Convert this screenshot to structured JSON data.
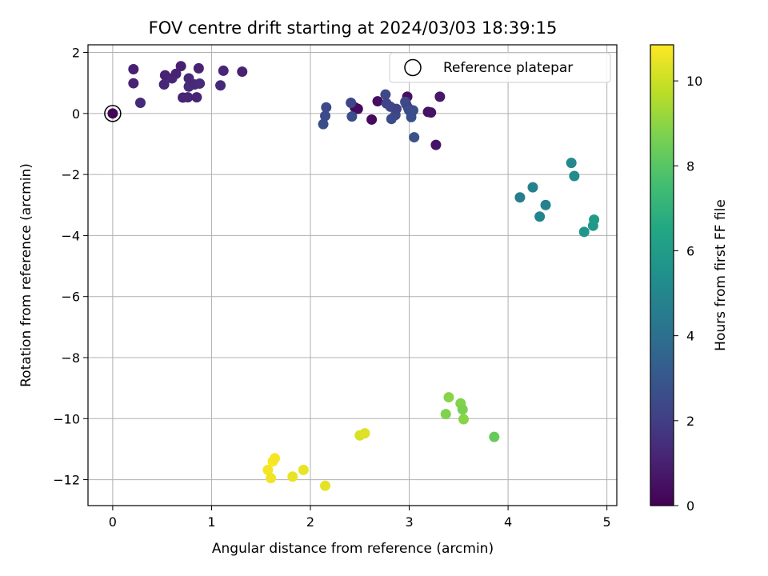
{
  "chart_data": {
    "type": "scatter",
    "title": "FOV centre drift starting at 2024/03/03 18:39:15",
    "xlabel": "Angular distance from reference (arcmin)",
    "ylabel": "Rotation from reference (arcmin)",
    "xlim": [
      -0.25,
      5.1
    ],
    "ylim": [
      -12.85,
      2.25
    ],
    "xticks": [
      0,
      1,
      2,
      3,
      4,
      5
    ],
    "xtick_labels": [
      "0",
      "1",
      "2",
      "3",
      "4",
      "5"
    ],
    "yticks": [
      2,
      0,
      -2,
      -4,
      -6,
      -8,
      -10,
      -12
    ],
    "ytick_labels": [
      "2",
      "0",
      "−2",
      "−4",
      "−6",
      "−8",
      "−10",
      "−12"
    ],
    "grid": true,
    "colorbar": {
      "label": "Hours from first FF file",
      "range": [
        0,
        10.85
      ],
      "ticks": [
        0,
        2,
        4,
        6,
        8,
        10
      ],
      "tick_labels": [
        "0",
        "2",
        "4",
        "6",
        "8",
        "10"
      ],
      "colormap": "viridis"
    },
    "legend": {
      "position": "top-right",
      "label": "Reference platepar"
    },
    "reference_point": {
      "x": 0,
      "y": 0
    },
    "points": [
      {
        "x": 0.0,
        "y": 0.0,
        "h": 0.1
      },
      {
        "x": 2.45,
        "y": 0.2,
        "h": 0.2
      },
      {
        "x": 2.48,
        "y": 0.15,
        "h": 0.3
      },
      {
        "x": 2.62,
        "y": -0.2,
        "h": 0.3
      },
      {
        "x": 2.68,
        "y": 0.4,
        "h": 0.4
      },
      {
        "x": 2.98,
        "y": 0.55,
        "h": 0.5
      },
      {
        "x": 3.19,
        "y": 0.05,
        "h": 0.5
      },
      {
        "x": 3.22,
        "y": 0.03,
        "h": 0.6
      },
      {
        "x": 3.27,
        "y": -1.03,
        "h": 0.6
      },
      {
        "x": 3.31,
        "y": 0.55,
        "h": 0.7
      },
      {
        "x": 0.21,
        "y": 1.45,
        "h": 1.0
      },
      {
        "x": 0.21,
        "y": 0.99,
        "h": 1.1
      },
      {
        "x": 0.28,
        "y": 0.35,
        "h": 1.3
      },
      {
        "x": 0.52,
        "y": 0.95,
        "h": 1.2
      },
      {
        "x": 0.53,
        "y": 1.25,
        "h": 1.1
      },
      {
        "x": 0.6,
        "y": 1.15,
        "h": 1.2
      },
      {
        "x": 0.64,
        "y": 1.3,
        "h": 1.1
      },
      {
        "x": 0.69,
        "y": 1.55,
        "h": 1.0
      },
      {
        "x": 0.71,
        "y": 0.52,
        "h": 1.1
      },
      {
        "x": 0.76,
        "y": 0.53,
        "h": 1.2
      },
      {
        "x": 0.77,
        "y": 1.15,
        "h": 1.3
      },
      {
        "x": 0.77,
        "y": 0.88,
        "h": 1.4
      },
      {
        "x": 0.83,
        "y": 0.95,
        "h": 1.3
      },
      {
        "x": 0.85,
        "y": 0.53,
        "h": 1.2
      },
      {
        "x": 0.87,
        "y": 1.48,
        "h": 1.1
      },
      {
        "x": 0.88,
        "y": 0.98,
        "h": 1.4
      },
      {
        "x": 1.09,
        "y": 0.92,
        "h": 1.3
      },
      {
        "x": 1.12,
        "y": 1.4,
        "h": 1.2
      },
      {
        "x": 1.31,
        "y": 1.37,
        "h": 1.1
      },
      {
        "x": 2.13,
        "y": -0.35,
        "h": 2.6
      },
      {
        "x": 2.15,
        "y": -0.08,
        "h": 2.5
      },
      {
        "x": 2.16,
        "y": 0.2,
        "h": 2.4
      },
      {
        "x": 2.41,
        "y": 0.35,
        "h": 2.3
      },
      {
        "x": 2.42,
        "y": -0.1,
        "h": 2.6
      },
      {
        "x": 2.76,
        "y": 0.62,
        "h": 2.4
      },
      {
        "x": 2.77,
        "y": 0.33,
        "h": 2.2
      },
      {
        "x": 2.81,
        "y": 0.22,
        "h": 2.3
      },
      {
        "x": 2.82,
        "y": -0.18,
        "h": 2.5
      },
      {
        "x": 2.86,
        "y": -0.05,
        "h": 2.4
      },
      {
        "x": 2.87,
        "y": 0.15,
        "h": 2.2
      },
      {
        "x": 2.96,
        "y": 0.38,
        "h": 2.3
      },
      {
        "x": 2.97,
        "y": 0.3,
        "h": 2.4
      },
      {
        "x": 2.99,
        "y": 0.18,
        "h": 2.2
      },
      {
        "x": 3.0,
        "y": 0.1,
        "h": 2.5
      },
      {
        "x": 3.02,
        "y": -0.12,
        "h": 2.7
      },
      {
        "x": 3.04,
        "y": 0.1,
        "h": 2.6
      },
      {
        "x": 3.05,
        "y": -0.78,
        "h": 2.8
      },
      {
        "x": 4.12,
        "y": -2.75,
        "h": 4.6
      },
      {
        "x": 4.25,
        "y": -2.42,
        "h": 4.8
      },
      {
        "x": 4.32,
        "y": -3.38,
        "h": 4.9
      },
      {
        "x": 4.38,
        "y": -3.0,
        "h": 4.7
      },
      {
        "x": 4.64,
        "y": -1.62,
        "h": 5.1
      },
      {
        "x": 4.67,
        "y": -2.05,
        "h": 5.2
      },
      {
        "x": 4.77,
        "y": -3.88,
        "h": 5.7
      },
      {
        "x": 4.86,
        "y": -3.68,
        "h": 5.8
      },
      {
        "x": 4.87,
        "y": -3.48,
        "h": 5.9
      },
      {
        "x": 3.37,
        "y": -9.85,
        "h": 8.8
      },
      {
        "x": 3.4,
        "y": -9.3,
        "h": 8.9
      },
      {
        "x": 3.52,
        "y": -9.5,
        "h": 8.8
      },
      {
        "x": 3.54,
        "y": -9.7,
        "h": 8.7
      },
      {
        "x": 3.55,
        "y": -10.02,
        "h": 8.9
      },
      {
        "x": 3.86,
        "y": -10.6,
        "h": 8.3
      },
      {
        "x": 2.5,
        "y": -10.55,
        "h": 10.2
      },
      {
        "x": 2.55,
        "y": -10.48,
        "h": 10.3
      },
      {
        "x": 1.57,
        "y": -11.68,
        "h": 10.7
      },
      {
        "x": 1.6,
        "y": -11.95,
        "h": 10.6
      },
      {
        "x": 1.62,
        "y": -11.4,
        "h": 10.8
      },
      {
        "x": 1.64,
        "y": -11.3,
        "h": 10.7
      },
      {
        "x": 1.82,
        "y": -11.9,
        "h": 10.5
      },
      {
        "x": 1.93,
        "y": -11.68,
        "h": 10.5
      },
      {
        "x": 2.15,
        "y": -12.2,
        "h": 10.4
      }
    ]
  }
}
